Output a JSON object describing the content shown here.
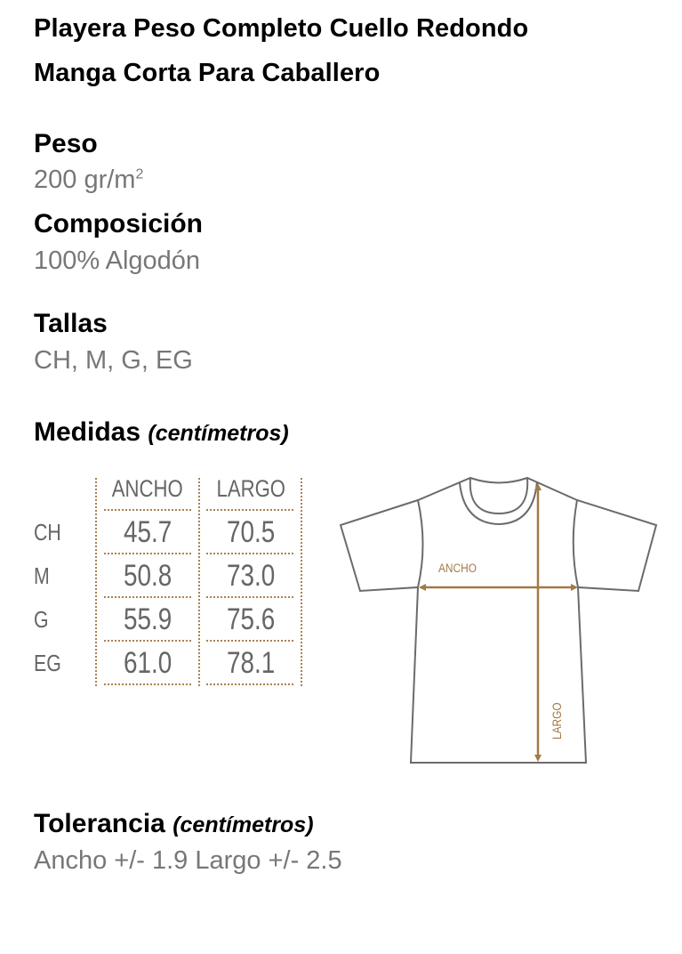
{
  "title_line1": "Playera Peso Completo Cuello Redondo",
  "title_line2": "Manga Corta Para Caballero",
  "peso": {
    "label": "Peso",
    "value": "200 gr/m",
    "sup": "2"
  },
  "composicion": {
    "label": "Composición",
    "value": "100% Algodón"
  },
  "tallas": {
    "label": "Tallas",
    "value": "CH, M, G, EG"
  },
  "medidas": {
    "label": "Medidas",
    "unit": "(centímetros)"
  },
  "table": {
    "headers": [
      "ANCHO",
      "LARGO"
    ],
    "rows": [
      {
        "size": "CH",
        "ancho": "45.7",
        "largo": "70.5"
      },
      {
        "size": "M",
        "ancho": "50.8",
        "largo": "73.0"
      },
      {
        "size": "G",
        "ancho": "55.9",
        "largo": "75.6"
      },
      {
        "size": "EG",
        "ancho": "61.0",
        "largo": "78.1"
      }
    ]
  },
  "diagram": {
    "ancho_label": "ANCHO",
    "largo_label": "LARGO",
    "accent_color": "#a27a45",
    "outline_color": "#6b6b6b"
  },
  "tolerancia": {
    "label": "Tolerancia",
    "unit": "(centímetros)",
    "value": "Ancho +/- 1.9 Largo +/- 2.5"
  }
}
